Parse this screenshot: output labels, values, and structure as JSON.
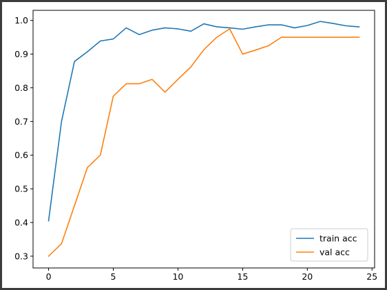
{
  "chart_data": {
    "type": "line",
    "title": "",
    "xlabel": "",
    "ylabel": "",
    "xlim": [
      -1.2,
      25.2
    ],
    "ylim": [
      0.265,
      1.03
    ],
    "xticks": [
      0,
      5,
      10,
      15,
      20,
      25
    ],
    "yticks": [
      0.3,
      0.4,
      0.5,
      0.6,
      0.7,
      0.8,
      0.9,
      1.0
    ],
    "xtick_labels": [
      "0",
      "5",
      "10",
      "15",
      "20",
      "25"
    ],
    "ytick_labels": [
      "0.3",
      "0.4",
      "0.5",
      "0.6",
      "0.7",
      "0.8",
      "0.9",
      "1.0"
    ],
    "grid": false,
    "legend": "bottom-right",
    "x": [
      0,
      1,
      2,
      3,
      4,
      5,
      6,
      7,
      8,
      9,
      10,
      11,
      12,
      13,
      14,
      15,
      16,
      17,
      18,
      19,
      20,
      21,
      22,
      23,
      24
    ],
    "series": [
      {
        "name": "train acc",
        "color": "#1f77b4",
        "values": [
          0.405,
          0.7,
          0.878,
          0.907,
          0.939,
          0.945,
          0.978,
          0.958,
          0.971,
          0.978,
          0.975,
          0.968,
          0.99,
          0.981,
          0.978,
          0.974,
          0.981,
          0.987,
          0.987,
          0.978,
          0.985,
          0.997,
          0.991,
          0.984,
          0.981
        ]
      },
      {
        "name": "val acc",
        "color": "#ff7f0e",
        "values": [
          0.3,
          0.337,
          0.45,
          0.563,
          0.6,
          0.775,
          0.812,
          0.812,
          0.825,
          0.787,
          0.825,
          0.862,
          0.913,
          0.95,
          0.975,
          0.9,
          0.912,
          0.925,
          0.95,
          0.95,
          0.95,
          0.95,
          0.95,
          0.95,
          0.95
        ]
      }
    ]
  }
}
